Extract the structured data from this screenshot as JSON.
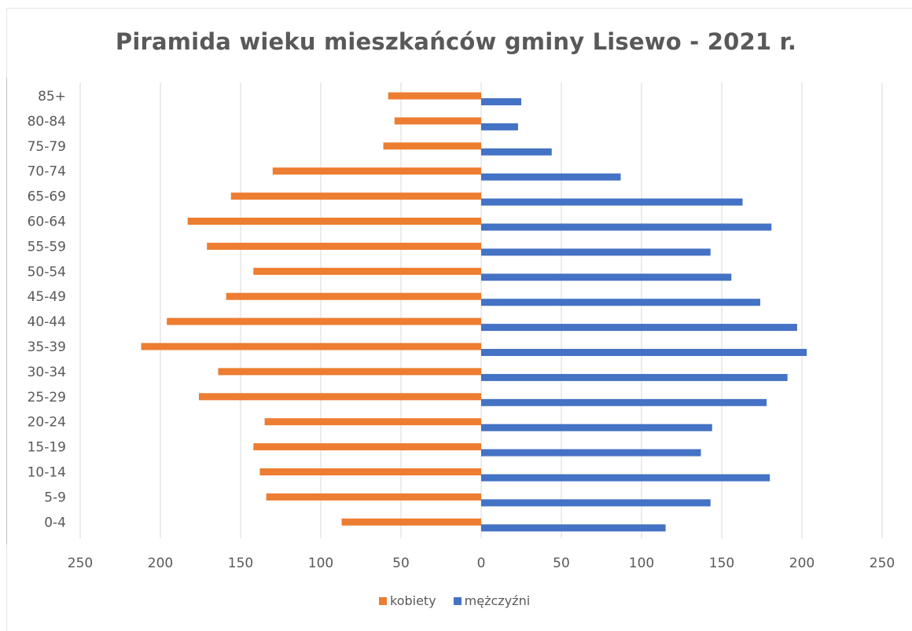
{
  "chart_data": {
    "type": "bar",
    "orientation": "horizontal",
    "title": "Piramida wieku mieszkańców gminy Lisewo - 2021 r.",
    "categories": [
      "0-4",
      "5-9",
      "10-14",
      "15-19",
      "20-24",
      "25-29",
      "30-34",
      "35-39",
      "40-44",
      "45-49",
      "50-54",
      "55-59",
      "60-64",
      "65-69",
      "70-74",
      "75-79",
      "80-84",
      "85+"
    ],
    "series": [
      {
        "name": "kobiety",
        "color": "#ED7D31",
        "side": "left",
        "values": [
          87,
          134,
          138,
          142,
          135,
          176,
          164,
          212,
          196,
          159,
          142,
          171,
          183,
          156,
          130,
          61,
          54,
          58
        ]
      },
      {
        "name": "mężczyźni",
        "color": "#4472C4",
        "side": "right",
        "values": [
          115,
          143,
          180,
          137,
          144,
          178,
          191,
          203,
          197,
          174,
          156,
          143,
          181,
          163,
          87,
          44,
          23,
          25
        ]
      }
    ],
    "xaxis_ticks": [
      "250",
      "200",
      "150",
      "100",
      "50",
      "0",
      "50",
      "100",
      "150",
      "200",
      "250"
    ],
    "xlim": [
      -250,
      250
    ],
    "grid": true,
    "legend_position": "bottom"
  }
}
